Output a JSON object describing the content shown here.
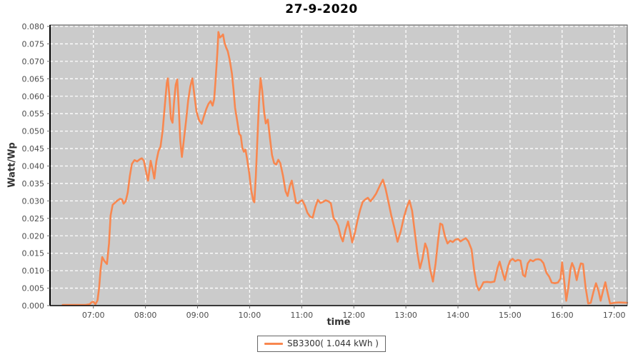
{
  "title": "27-9-2020",
  "legend": {
    "label": "SB3300( 1.044 kWh )"
  },
  "colors": {
    "line": "#F8874F",
    "plot_bg": "#CBCBCB",
    "grid": "#FFFFFF",
    "axis_line": "#000000",
    "plot_outline": "#555555",
    "tick_mark": "#666666",
    "tick_label": "#4D4D4D"
  },
  "chart_data": {
    "type": "line",
    "title": "27-9-2020",
    "xlabel": "time",
    "ylabel": "Watt/Wp",
    "xlim_hours": [
      6.17,
      17.25
    ],
    "ylim": [
      0,
      0.08
    ],
    "grid": true,
    "legend_position": "bottom-center",
    "x_ticks_hours": [
      7,
      8,
      9,
      10,
      11,
      12,
      13,
      14,
      15,
      16,
      17
    ],
    "x_tick_labels": [
      "07:00",
      "08:00",
      "09:00",
      "10:00",
      "11:00",
      "12:00",
      "13:00",
      "14:00",
      "15:00",
      "16:00",
      "17:00"
    ],
    "y_ticks": [
      0.0,
      0.005,
      0.01,
      0.015,
      0.02,
      0.025,
      0.03,
      0.035,
      0.04,
      0.045,
      0.05,
      0.055,
      0.06,
      0.065,
      0.07,
      0.075,
      0.08
    ],
    "y_tick_labels": [
      "0.000",
      "0.005",
      "0.010",
      "0.015",
      "0.020",
      "0.025",
      "0.030",
      "0.035",
      "0.040",
      "0.045",
      "0.050",
      "0.055",
      "0.060",
      "0.065",
      "0.070",
      "0.075",
      "0.080"
    ],
    "series": [
      {
        "name": "SB3300",
        "label": "SB3300( 1.044 kWh )",
        "energy": "1.044 kWh",
        "color": "#F8874F",
        "points": [
          [
            6.41,
            0.0002
          ],
          [
            6.55,
            0.0002
          ],
          [
            6.7,
            0.0002
          ],
          [
            6.85,
            0.0002
          ],
          [
            6.93,
            0.0004
          ],
          [
            6.97,
            0.001
          ],
          [
            7.0,
            0.0011
          ],
          [
            7.04,
            0.0004
          ],
          [
            7.08,
            0.0015
          ],
          [
            7.11,
            0.005
          ],
          [
            7.14,
            0.0105
          ],
          [
            7.17,
            0.0139
          ],
          [
            7.21,
            0.0128
          ],
          [
            7.26,
            0.0119
          ],
          [
            7.3,
            0.0178
          ],
          [
            7.33,
            0.0258
          ],
          [
            7.37,
            0.0289
          ],
          [
            7.41,
            0.0294
          ],
          [
            7.46,
            0.0301
          ],
          [
            7.51,
            0.0306
          ],
          [
            7.55,
            0.0304
          ],
          [
            7.58,
            0.0292
          ],
          [
            7.62,
            0.0299
          ],
          [
            7.66,
            0.0324
          ],
          [
            7.7,
            0.0371
          ],
          [
            7.74,
            0.0406
          ],
          [
            7.79,
            0.0417
          ],
          [
            7.84,
            0.0413
          ],
          [
            7.89,
            0.0419
          ],
          [
            7.93,
            0.0422
          ],
          [
            7.97,
            0.0415
          ],
          [
            8.01,
            0.0385
          ],
          [
            8.05,
            0.0358
          ],
          [
            8.1,
            0.0415
          ],
          [
            8.14,
            0.0388
          ],
          [
            8.17,
            0.0364
          ],
          [
            8.21,
            0.0414
          ],
          [
            8.25,
            0.0442
          ],
          [
            8.29,
            0.0456
          ],
          [
            8.33,
            0.0502
          ],
          [
            8.37,
            0.0571
          ],
          [
            8.41,
            0.0638
          ],
          [
            8.43,
            0.0651
          ],
          [
            8.46,
            0.0601
          ],
          [
            8.49,
            0.0535
          ],
          [
            8.52,
            0.0524
          ],
          [
            8.55,
            0.0585
          ],
          [
            8.58,
            0.0632
          ],
          [
            8.61,
            0.0648
          ],
          [
            8.64,
            0.0563
          ],
          [
            8.67,
            0.0471
          ],
          [
            8.7,
            0.0426
          ],
          [
            8.74,
            0.0478
          ],
          [
            8.78,
            0.0531
          ],
          [
            8.82,
            0.0588
          ],
          [
            8.86,
            0.0627
          ],
          [
            8.9,
            0.0651
          ],
          [
            8.94,
            0.0603
          ],
          [
            8.98,
            0.0556
          ],
          [
            9.03,
            0.0531
          ],
          [
            9.08,
            0.0521
          ],
          [
            9.12,
            0.0541
          ],
          [
            9.17,
            0.0564
          ],
          [
            9.21,
            0.0578
          ],
          [
            9.25,
            0.0586
          ],
          [
            9.29,
            0.0573
          ],
          [
            9.32,
            0.0592
          ],
          [
            9.35,
            0.0654
          ],
          [
            9.38,
            0.0723
          ],
          [
            9.4,
            0.0784
          ],
          [
            9.43,
            0.0768
          ],
          [
            9.46,
            0.0772
          ],
          [
            9.49,
            0.0777
          ],
          [
            9.52,
            0.0752
          ],
          [
            9.55,
            0.0739
          ],
          [
            9.58,
            0.0729
          ],
          [
            9.62,
            0.0702
          ],
          [
            9.66,
            0.0665
          ],
          [
            9.69,
            0.0621
          ],
          [
            9.72,
            0.0567
          ],
          [
            9.76,
            0.0531
          ],
          [
            9.8,
            0.0492
          ],
          [
            9.83,
            0.0487
          ],
          [
            9.86,
            0.0452
          ],
          [
            9.89,
            0.0441
          ],
          [
            9.92,
            0.0447
          ],
          [
            9.95,
            0.0421
          ],
          [
            9.99,
            0.0382
          ],
          [
            10.03,
            0.0331
          ],
          [
            10.07,
            0.0301
          ],
          [
            10.09,
            0.0296
          ],
          [
            10.12,
            0.0371
          ],
          [
            10.15,
            0.0478
          ],
          [
            10.18,
            0.0582
          ],
          [
            10.21,
            0.0652
          ],
          [
            10.24,
            0.0618
          ],
          [
            10.28,
            0.0553
          ],
          [
            10.31,
            0.0522
          ],
          [
            10.35,
            0.0533
          ],
          [
            10.39,
            0.0481
          ],
          [
            10.43,
            0.0432
          ],
          [
            10.47,
            0.0408
          ],
          [
            10.51,
            0.0404
          ],
          [
            10.55,
            0.0418
          ],
          [
            10.59,
            0.0408
          ],
          [
            10.64,
            0.0372
          ],
          [
            10.69,
            0.0328
          ],
          [
            10.73,
            0.0314
          ],
          [
            10.77,
            0.0342
          ],
          [
            10.81,
            0.0358
          ],
          [
            10.85,
            0.0327
          ],
          [
            10.89,
            0.0295
          ],
          [
            10.93,
            0.0293
          ],
          [
            10.97,
            0.0299
          ],
          [
            11.01,
            0.0302
          ],
          [
            11.06,
            0.0287
          ],
          [
            11.11,
            0.0266
          ],
          [
            11.16,
            0.0255
          ],
          [
            11.21,
            0.0252
          ],
          [
            11.26,
            0.0282
          ],
          [
            11.31,
            0.0303
          ],
          [
            11.36,
            0.0294
          ],
          [
            11.41,
            0.0297
          ],
          [
            11.46,
            0.0302
          ],
          [
            11.51,
            0.0299
          ],
          [
            11.56,
            0.0293
          ],
          [
            11.61,
            0.0251
          ],
          [
            11.66,
            0.0241
          ],
          [
            11.7,
            0.0229
          ],
          [
            11.75,
            0.0198
          ],
          [
            11.79,
            0.0184
          ],
          [
            11.84,
            0.0216
          ],
          [
            11.89,
            0.0241
          ],
          [
            11.93,
            0.0212
          ],
          [
            11.97,
            0.0181
          ],
          [
            12.02,
            0.0208
          ],
          [
            12.07,
            0.0243
          ],
          [
            12.12,
            0.0273
          ],
          [
            12.17,
            0.0297
          ],
          [
            12.22,
            0.0304
          ],
          [
            12.27,
            0.0309
          ],
          [
            12.32,
            0.0299
          ],
          [
            12.37,
            0.0308
          ],
          [
            12.43,
            0.0321
          ],
          [
            12.5,
            0.0344
          ],
          [
            12.56,
            0.0361
          ],
          [
            12.61,
            0.0335
          ],
          [
            12.66,
            0.0301
          ],
          [
            12.72,
            0.0258
          ],
          [
            12.78,
            0.0222
          ],
          [
            12.84,
            0.0183
          ],
          [
            12.9,
            0.0212
          ],
          [
            12.96,
            0.0252
          ],
          [
            13.02,
            0.0283
          ],
          [
            13.07,
            0.0301
          ],
          [
            13.12,
            0.0272
          ],
          [
            13.17,
            0.0212
          ],
          [
            13.22,
            0.0152
          ],
          [
            13.27,
            0.0107
          ],
          [
            13.32,
            0.0135
          ],
          [
            13.37,
            0.0178
          ],
          [
            13.41,
            0.0162
          ],
          [
            13.46,
            0.0108
          ],
          [
            13.52,
            0.0069
          ],
          [
            13.57,
            0.0121
          ],
          [
            13.62,
            0.0189
          ],
          [
            13.66,
            0.0235
          ],
          [
            13.7,
            0.0232
          ],
          [
            13.75,
            0.0198
          ],
          [
            13.8,
            0.0178
          ],
          [
            13.85,
            0.0186
          ],
          [
            13.9,
            0.0182
          ],
          [
            13.95,
            0.0189
          ],
          [
            14.0,
            0.0191
          ],
          [
            14.05,
            0.0184
          ],
          [
            14.1,
            0.0189
          ],
          [
            14.15,
            0.0193
          ],
          [
            14.2,
            0.0184
          ],
          [
            14.26,
            0.0161
          ],
          [
            14.31,
            0.0102
          ],
          [
            14.36,
            0.0058
          ],
          [
            14.4,
            0.0044
          ],
          [
            14.44,
            0.0052
          ],
          [
            14.49,
            0.0067
          ],
          [
            14.56,
            0.0068
          ],
          [
            14.63,
            0.0067
          ],
          [
            14.7,
            0.0069
          ],
          [
            14.76,
            0.0108
          ],
          [
            14.8,
            0.0126
          ],
          [
            14.85,
            0.0098
          ],
          [
            14.9,
            0.0073
          ],
          [
            14.96,
            0.0112
          ],
          [
            15.0,
            0.0128
          ],
          [
            15.05,
            0.0134
          ],
          [
            15.1,
            0.0127
          ],
          [
            15.15,
            0.0131
          ],
          [
            15.2,
            0.0129
          ],
          [
            15.25,
            0.0088
          ],
          [
            15.29,
            0.0083
          ],
          [
            15.34,
            0.0121
          ],
          [
            15.39,
            0.0131
          ],
          [
            15.44,
            0.0127
          ],
          [
            15.49,
            0.0132
          ],
          [
            15.54,
            0.0133
          ],
          [
            15.59,
            0.0131
          ],
          [
            15.64,
            0.0122
          ],
          [
            15.7,
            0.0094
          ],
          [
            15.75,
            0.0083
          ],
          [
            15.8,
            0.0066
          ],
          [
            15.86,
            0.0064
          ],
          [
            15.92,
            0.0066
          ],
          [
            15.97,
            0.0078
          ],
          [
            16.0,
            0.0124
          ],
          [
            16.04,
            0.0071
          ],
          [
            16.08,
            0.0014
          ],
          [
            16.12,
            0.0052
          ],
          [
            16.16,
            0.0105
          ],
          [
            16.19,
            0.0122
          ],
          [
            16.23,
            0.0108
          ],
          [
            16.28,
            0.0073
          ],
          [
            16.32,
            0.0101
          ],
          [
            16.36,
            0.0121
          ],
          [
            16.4,
            0.0119
          ],
          [
            16.45,
            0.0053
          ],
          [
            16.5,
            0.0006
          ],
          [
            16.55,
            0.0008
          ],
          [
            16.6,
            0.0038
          ],
          [
            16.65,
            0.0064
          ],
          [
            16.7,
            0.0042
          ],
          [
            16.74,
            0.0014
          ],
          [
            16.79,
            0.0045
          ],
          [
            16.83,
            0.0067
          ],
          [
            16.88,
            0.0032
          ],
          [
            16.92,
            0.0006
          ],
          [
            17.0,
            0.0008
          ],
          [
            17.1,
            0.0009
          ],
          [
            17.25,
            0.0008
          ]
        ]
      }
    ]
  }
}
